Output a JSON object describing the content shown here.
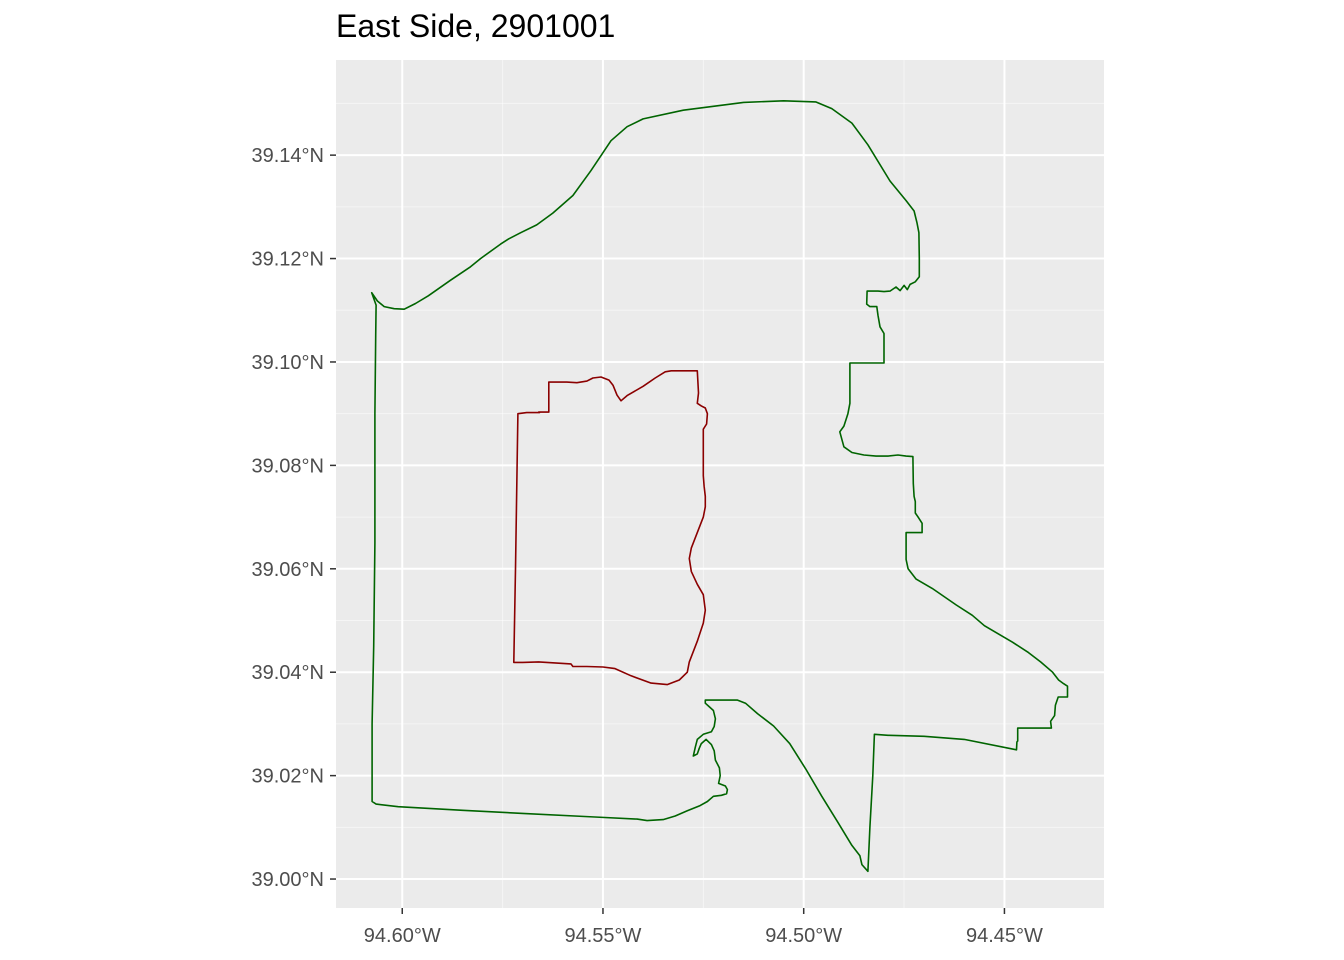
{
  "title": "East Side, 2901001",
  "map": {
    "type": "map",
    "panel_background": "#ebebeb",
    "grid_color": "#ffffff",
    "x_ticks": [
      {
        "value": -94.6,
        "label": "94.60°W"
      },
      {
        "value": -94.55,
        "label": "94.55°W"
      },
      {
        "value": -94.5,
        "label": "94.50°W"
      },
      {
        "value": -94.45,
        "label": "94.45°W"
      }
    ],
    "y_ticks": [
      {
        "value": 39.0,
        "label": "39.00°N"
      },
      {
        "value": 39.02,
        "label": "39.02°N"
      },
      {
        "value": 39.04,
        "label": "39.04°N"
      },
      {
        "value": 39.06,
        "label": "39.06°N"
      },
      {
        "value": 39.08,
        "label": "39.08°N"
      },
      {
        "value": 39.1,
        "label": "39.10°N"
      },
      {
        "value": 39.12,
        "label": "39.12°N"
      },
      {
        "value": 39.14,
        "label": "39.14°N"
      }
    ],
    "xlim": [
      -94.6165,
      -94.4252
    ],
    "ylim": [
      38.9944,
      39.1584
    ],
    "boundaries": [
      {
        "color": "#006400",
        "coords": [
          [
            -94.6076,
            39.1134
          ],
          [
            -94.6062,
            39.1118
          ],
          [
            -94.6045,
            39.1107
          ],
          [
            -94.602,
            39.1103
          ],
          [
            -94.5995,
            39.1102
          ],
          [
            -94.5967,
            39.1113
          ],
          [
            -94.5935,
            39.1128
          ],
          [
            -94.588,
            39.1158
          ],
          [
            -94.583,
            39.1184
          ],
          [
            -94.5805,
            39.12
          ],
          [
            -94.5755,
            39.1228
          ],
          [
            -94.5735,
            39.1238
          ],
          [
            -94.5705,
            39.125
          ],
          [
            -94.5665,
            39.1265
          ],
          [
            -94.5625,
            39.1288
          ],
          [
            -94.5575,
            39.1322
          ],
          [
            -94.553,
            39.137
          ],
          [
            -94.548,
            39.1428
          ],
          [
            -94.544,
            39.1455
          ],
          [
            -94.54,
            39.147
          ],
          [
            -94.53,
            39.1487
          ],
          [
            -94.515,
            39.1502
          ],
          [
            -94.505,
            39.1505
          ],
          [
            -94.497,
            39.1503
          ],
          [
            -94.493,
            39.149
          ],
          [
            -94.488,
            39.1462
          ],
          [
            -94.484,
            39.142
          ],
          [
            -94.4785,
            39.135
          ],
          [
            -94.4745,
            39.1312
          ],
          [
            -94.4725,
            39.1292
          ],
          [
            -94.4718,
            39.127
          ],
          [
            -94.4713,
            39.125
          ],
          [
            -94.4712,
            39.12
          ],
          [
            -94.4712,
            39.1165
          ],
          [
            -94.4722,
            39.1155
          ],
          [
            -94.4735,
            39.115
          ],
          [
            -94.4742,
            39.114
          ],
          [
            -94.475,
            39.1148
          ],
          [
            -94.476,
            39.1138
          ],
          [
            -94.477,
            39.1145
          ],
          [
            -94.4785,
            39.1137
          ],
          [
            -94.48,
            39.1136
          ],
          [
            -94.4815,
            39.1137
          ],
          [
            -94.4842,
            39.1137
          ],
          [
            -94.4843,
            39.1112
          ],
          [
            -94.4835,
            39.1107
          ],
          [
            -94.4818,
            39.1107
          ],
          [
            -94.4815,
            39.109
          ],
          [
            -94.481,
            39.1068
          ],
          [
            -94.48,
            39.1055
          ],
          [
            -94.48,
            39.0998
          ],
          [
            -94.4885,
            39.0998
          ],
          [
            -94.4885,
            39.092
          ],
          [
            -94.489,
            39.09
          ],
          [
            -94.49,
            39.0876
          ],
          [
            -94.491,
            39.0865
          ],
          [
            -94.49,
            39.0836
          ],
          [
            -94.488,
            39.0825
          ],
          [
            -94.485,
            39.082
          ],
          [
            -94.482,
            39.0818
          ],
          [
            -94.479,
            39.0818
          ],
          [
            -94.4765,
            39.082
          ],
          [
            -94.4745,
            39.0818
          ],
          [
            -94.4728,
            39.0817
          ],
          [
            -94.4727,
            39.0765
          ],
          [
            -94.4725,
            39.074
          ],
          [
            -94.4722,
            39.073
          ],
          [
            -94.4722,
            39.0708
          ],
          [
            -94.4715,
            39.07
          ],
          [
            -94.4705,
            39.0688
          ],
          [
            -94.4705,
            39.067
          ],
          [
            -94.4745,
            39.067
          ],
          [
            -94.4745,
            39.0618
          ],
          [
            -94.474,
            39.06
          ],
          [
            -94.472,
            39.058
          ],
          [
            -94.468,
            39.0562
          ],
          [
            -94.462,
            39.053
          ],
          [
            -94.458,
            39.051
          ],
          [
            -94.455,
            39.049
          ],
          [
            -94.448,
            39.0458
          ],
          [
            -94.444,
            39.0438
          ],
          [
            -94.441,
            39.042
          ],
          [
            -94.438,
            39.04
          ],
          [
            -94.4365,
            39.0385
          ],
          [
            -94.4353,
            39.0378
          ],
          [
            -94.4343,
            39.0373
          ],
          [
            -94.4343,
            39.0352
          ],
          [
            -94.4366,
            39.0352
          ],
          [
            -94.4373,
            39.0336
          ],
          [
            -94.4375,
            39.0316
          ],
          [
            -94.4385,
            39.0305
          ],
          [
            -94.4383,
            39.0292
          ],
          [
            -94.4467,
            39.0292
          ],
          [
            -94.4467,
            39.0267
          ],
          [
            -94.4469,
            39.0265
          ],
          [
            -94.447,
            39.025
          ],
          [
            -94.46,
            39.027
          ],
          [
            -94.47,
            39.0276
          ],
          [
            -94.479,
            39.0278
          ],
          [
            -94.4824,
            39.028
          ],
          [
            -94.4828,
            39.02
          ],
          [
            -94.4835,
            39.01
          ],
          [
            -94.484,
            39.0015
          ],
          [
            -94.4855,
            39.0028
          ],
          [
            -94.486,
            39.0045
          ],
          [
            -94.488,
            39.0065
          ],
          [
            -94.4915,
            39.011
          ],
          [
            -94.4955,
            39.016
          ],
          [
            -94.4995,
            39.0213
          ],
          [
            -94.5035,
            39.0262
          ],
          [
            -94.5075,
            39.0296
          ],
          [
            -94.5115,
            39.032
          ],
          [
            -94.5145,
            39.034
          ],
          [
            -94.5165,
            39.0346
          ],
          [
            -94.5205,
            39.0346
          ],
          [
            -94.5245,
            39.0346
          ],
          [
            -94.5245,
            39.034
          ],
          [
            -94.5235,
            39.0333
          ],
          [
            -94.5225,
            39.0326
          ],
          [
            -94.522,
            39.031
          ],
          [
            -94.5223,
            39.0295
          ],
          [
            -94.523,
            39.0285
          ],
          [
            -94.525,
            39.028
          ],
          [
            -94.5265,
            39.027
          ],
          [
            -94.527,
            39.0255
          ],
          [
            -94.5275,
            39.0238
          ],
          [
            -94.5265,
            39.0242
          ],
          [
            -94.526,
            39.0253
          ],
          [
            -94.5255,
            39.0262
          ],
          [
            -94.5243,
            39.027
          ],
          [
            -94.523,
            39.026
          ],
          [
            -94.5223,
            39.0248
          ],
          [
            -94.522,
            39.023
          ],
          [
            -94.521,
            39.0215
          ],
          [
            -94.5208,
            39.02
          ],
          [
            -94.5212,
            39.0185
          ],
          [
            -94.5195,
            39.018
          ],
          [
            -94.519,
            39.0173
          ],
          [
            -94.5192,
            39.0165
          ],
          [
            -94.5205,
            39.0162
          ],
          [
            -94.5225,
            39.016
          ],
          [
            -94.524,
            39.015
          ],
          [
            -94.5258,
            39.0142
          ],
          [
            -94.529,
            39.0132
          ],
          [
            -94.532,
            39.0122
          ],
          [
            -94.535,
            39.0115
          ],
          [
            -94.539,
            39.0113
          ],
          [
            -94.5415,
            39.0116
          ],
          [
            -94.552,
            39.012
          ],
          [
            -94.57,
            39.0127
          ],
          [
            -94.585,
            39.0133
          ],
          [
            -94.601,
            39.014
          ],
          [
            -94.6065,
            39.0145
          ],
          [
            -94.6075,
            39.015
          ],
          [
            -94.6075,
            39.03
          ],
          [
            -94.6071,
            39.045
          ],
          [
            -94.6068,
            39.065
          ],
          [
            -94.6068,
            39.09
          ],
          [
            -94.6066,
            39.105
          ],
          [
            -94.6065,
            39.111
          ],
          [
            -94.6076,
            39.1134
          ]
        ]
      },
      {
        "color": "#8b0000",
        "coords": [
          [
            -94.5635,
            39.0961
          ],
          [
            -94.559,
            39.0961
          ],
          [
            -94.5565,
            39.096
          ],
          [
            -94.554,
            39.0963
          ],
          [
            -94.5525,
            39.0969
          ],
          [
            -94.5505,
            39.0971
          ],
          [
            -94.5485,
            39.0965
          ],
          [
            -94.5475,
            39.0955
          ],
          [
            -94.5465,
            39.0936
          ],
          [
            -94.5455,
            39.0925
          ],
          [
            -94.544,
            39.0935
          ],
          [
            -94.54,
            39.0953
          ],
          [
            -94.537,
            39.0969
          ],
          [
            -94.5345,
            39.0981
          ],
          [
            -94.533,
            39.0983
          ],
          [
            -94.5295,
            39.0983
          ],
          [
            -94.5265,
            39.0983
          ],
          [
            -94.5262,
            39.094
          ],
          [
            -94.5265,
            39.092
          ],
          [
            -94.5255,
            39.0915
          ],
          [
            -94.5245,
            39.0911
          ],
          [
            -94.524,
            39.09
          ],
          [
            -94.5242,
            39.088
          ],
          [
            -94.525,
            39.087
          ],
          [
            -94.525,
            39.084
          ],
          [
            -94.525,
            39.082
          ],
          [
            -94.525,
            39.078
          ],
          [
            -94.5248,
            39.076
          ],
          [
            -94.5245,
            39.074
          ],
          [
            -94.5245,
            39.072
          ],
          [
            -94.525,
            39.07
          ],
          [
            -94.5265,
            39.067
          ],
          [
            -94.528,
            39.064
          ],
          [
            -94.5285,
            39.062
          ],
          [
            -94.528,
            39.0595
          ],
          [
            -94.5265,
            39.057
          ],
          [
            -94.525,
            39.055
          ],
          [
            -94.5245,
            39.052
          ],
          [
            -94.525,
            39.0495
          ],
          [
            -94.5265,
            39.046
          ],
          [
            -94.5285,
            39.042
          ],
          [
            -94.529,
            39.04
          ],
          [
            -94.531,
            39.0385
          ],
          [
            -94.534,
            39.0376
          ],
          [
            -94.538,
            39.0379
          ],
          [
            -94.543,
            39.0393
          ],
          [
            -94.547,
            39.0407
          ],
          [
            -94.55,
            39.041
          ],
          [
            -94.554,
            39.0411
          ],
          [
            -94.5575,
            39.0411
          ],
          [
            -94.558,
            39.0416
          ],
          [
            -94.562,
            39.0418
          ],
          [
            -94.566,
            39.042
          ],
          [
            -94.57,
            39.0419
          ],
          [
            -94.5722,
            39.0419
          ],
          [
            -94.5718,
            39.06
          ],
          [
            -94.5714,
            39.08
          ],
          [
            -94.5712,
            39.09
          ],
          [
            -94.569,
            39.0902
          ],
          [
            -94.566,
            39.0902
          ],
          [
            -94.5658,
            39.0902
          ],
          [
            -94.5658,
            39.0902
          ],
          [
            -94.566,
            39.0903
          ],
          [
            -94.5635,
            39.0903
          ],
          [
            -94.5635,
            39.0925
          ],
          [
            -94.5635,
            39.0961
          ]
        ]
      }
    ]
  }
}
